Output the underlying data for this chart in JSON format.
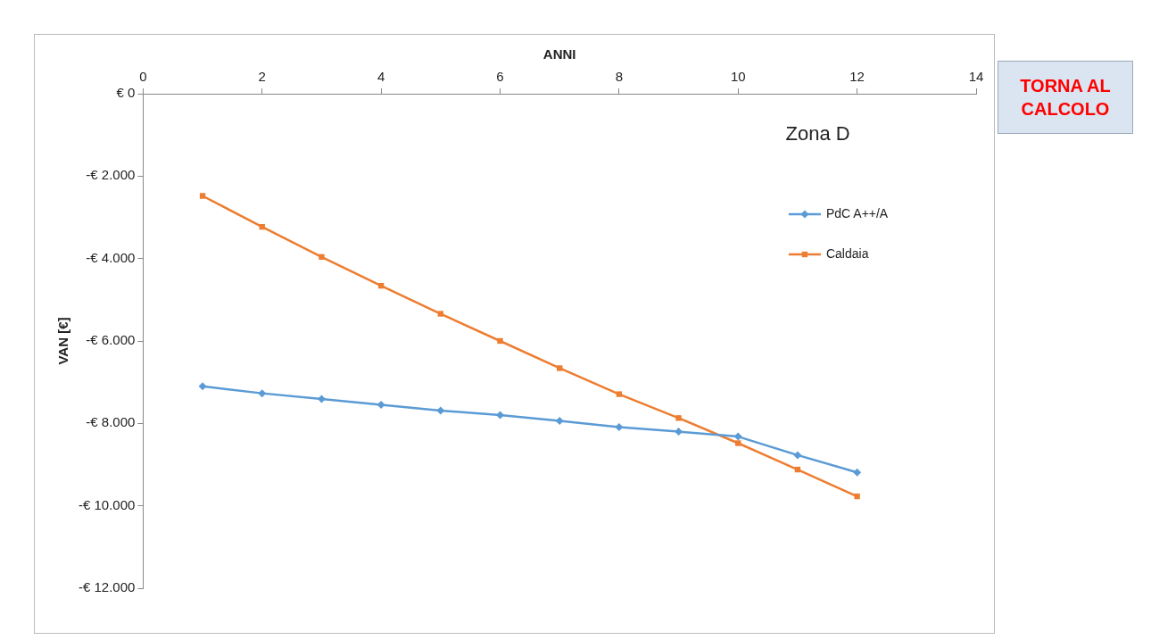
{
  "chart_data": {
    "type": "line",
    "title": "Zona D",
    "xlabel": "ANNI",
    "ylabel": "VAN [€]",
    "x": [
      1,
      2,
      3,
      4,
      5,
      6,
      7,
      8,
      9,
      10,
      11,
      12
    ],
    "series": [
      {
        "name": "PdC A++/A",
        "color": "#5b9bd5",
        "marker": "diamond",
        "values": [
          -7100,
          -7270,
          -7410,
          -7550,
          -7690,
          -7800,
          -7940,
          -8090,
          -8200,
          -8320,
          -8770,
          -9190
        ]
      },
      {
        "name": "Caldaia",
        "color": "#ed7d31",
        "marker": "square",
        "values": [
          -2480,
          -3230,
          -3960,
          -4660,
          -5340,
          -6000,
          -6660,
          -7290,
          -7870,
          -8480,
          -9120,
          -9770
        ]
      }
    ],
    "xlim": [
      0,
      14
    ],
    "xticks": [
      0,
      2,
      4,
      6,
      8,
      10,
      12,
      14
    ],
    "ylim": [
      -12000,
      0
    ],
    "yticks": [
      {
        "value": -12000,
        "label": "-€ 12.000"
      },
      {
        "value": -10000,
        "label": "-€ 10.000"
      },
      {
        "value": -8000,
        "label": "-€ 8.000"
      },
      {
        "value": -6000,
        "label": "-€ 6.000"
      },
      {
        "value": -4000,
        "label": "-€ 4.000"
      },
      {
        "value": -2000,
        "label": "-€ 2.000"
      },
      {
        "value": 0,
        "label": "€ 0"
      }
    ],
    "legend": "top right",
    "grid": false,
    "line_style": "solid",
    "annotations": [
      "TORNA AL CALCOLO"
    ]
  }
}
